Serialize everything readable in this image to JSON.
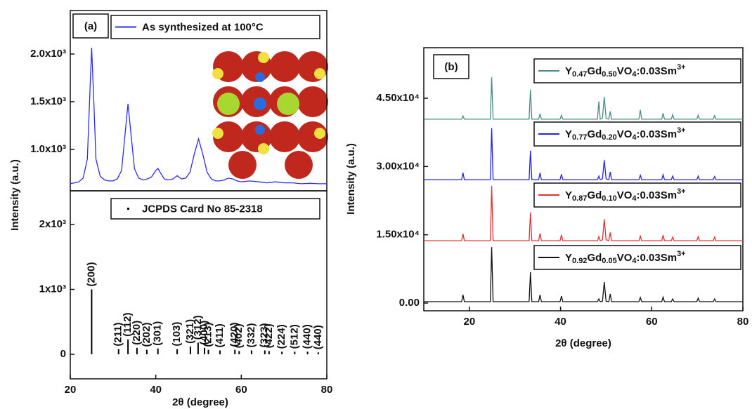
{
  "chart_data": [
    {
      "type": "line",
      "panel_label": "(a)",
      "ylabel": "Intensity (a.u.)",
      "x": [
        20,
        21,
        22,
        23,
        24,
        24.5,
        25,
        25.5,
        26,
        27,
        28,
        29,
        30,
        31,
        32,
        33,
        33.5,
        34,
        35,
        36,
        37,
        38,
        39,
        40,
        40.5,
        41,
        42,
        43,
        44,
        45,
        46,
        47,
        48,
        49,
        50,
        51,
        52,
        53,
        54,
        55,
        56,
        57,
        58,
        59,
        60,
        62,
        64,
        66,
        68,
        70,
        72,
        74,
        76,
        78,
        80
      ],
      "series": [
        {
          "name": "As synthesized at 100°C",
          "color": "#2b2bf0",
          "values": [
            640,
            650,
            660,
            700,
            900,
            1500,
            2066,
            1500,
            900,
            720,
            680,
            670,
            670,
            690,
            780,
            1250,
            1478,
            1250,
            800,
            700,
            680,
            690,
            710,
            780,
            800,
            760,
            690,
            680,
            690,
            724,
            690,
            700,
            760,
            950,
            1110,
            950,
            760,
            690,
            670,
            670,
            680,
            700,
            690,
            670,
            660,
            670,
            660,
            650,
            660,
            650,
            650,
            640,
            645,
            640,
            640
          ]
        }
      ],
      "xlim": [
        20,
        80
      ],
      "ylim": [
        566,
        2456
      ],
      "yticks": [
        {
          "value": 1000,
          "label": "1.0x10³"
        },
        {
          "value": 1500,
          "label": "1.5x10³"
        },
        {
          "value": 2000,
          "label": "2.0x10³"
        }
      ]
    },
    {
      "type": "stick",
      "xlabel": "2θ (degree)",
      "series": [
        {
          "name": "JCPDS Card No 85-2318",
          "color": "#000000",
          "x": [
            25.0,
            31.3,
            33.5,
            35.6,
            37.9,
            40.5,
            45.0,
            48.1,
            49.9,
            51.4,
            52.3,
            55.0,
            58.5,
            59.5,
            62.4,
            65.5,
            66.5,
            69.5,
            72.5,
            75.5,
            78.0
          ],
          "values": [
            1000,
            80,
            230,
            100,
            70,
            90,
            80,
            120,
            180,
            100,
            70,
            60,
            70,
            50,
            60,
            60,
            50,
            40,
            40,
            40,
            30
          ],
          "labels": [
            "(200)",
            "(211)",
            "(112)",
            "(220)",
            "(202)",
            "(301)",
            "(103)",
            "(321)",
            "(312)",
            "(400)",
            "(213)",
            "(411)",
            "(420)",
            "(402)",
            "(332)",
            "(323)",
            "(422)",
            "(224)",
            "(512)",
            "(440)",
            "(440)"
          ]
        }
      ],
      "xlim": [
        20,
        80
      ],
      "xticks": [
        20,
        40,
        60,
        80
      ],
      "ylim": [
        -378,
        2519
      ],
      "yticks": [
        0,
        {
          "value": 1000,
          "label": "1x10³"
        },
        {
          "value": 2000,
          "label": "2x10³"
        }
      ]
    },
    {
      "type": "line",
      "panel_label": "(b)",
      "xlabel": "2θ (degree)",
      "ylabel": "Intensity (a.u.)",
      "x": [
        10,
        18.3,
        18.6,
        18.9,
        22,
        24.6,
        24.9,
        25.2,
        28,
        33.1,
        33.4,
        33.7,
        35.2,
        35.5,
        35.8,
        39.9,
        40.2,
        40.5,
        44,
        48.1,
        48.4,
        48.7,
        49.2,
        49.6,
        50.0,
        50.6,
        50.9,
        51.2,
        54,
        57.2,
        57.5,
        57.8,
        62.2,
        62.5,
        62.8,
        64.3,
        64.6,
        64.9,
        69.9,
        70.2,
        70.5,
        73.5,
        73.8,
        74.1,
        80
      ],
      "series": [
        {
          "name": "Y0.47Gd0.50VO4:0.03Sm3+",
          "color": "#4a8c82",
          "values": [
            40400,
            40400,
            41100,
            40400,
            40400,
            40400,
            49600,
            40400,
            40400,
            40400,
            46900,
            40400,
            40400,
            41600,
            40400,
            40400,
            41300,
            40400,
            40400,
            40400,
            44300,
            40400,
            40600,
            45300,
            40600,
            40400,
            42100,
            40400,
            40400,
            40400,
            42400,
            40400,
            40400,
            41700,
            40400,
            40400,
            41400,
            40400,
            40400,
            41300,
            40400,
            40400,
            41200,
            40400,
            40400
          ]
        },
        {
          "name": "Y0.77Gd0.20VO4:0.03Sm3+",
          "color": "#2222ee",
          "values": [
            27100,
            27100,
            28600,
            27100,
            27100,
            27100,
            38400,
            27100,
            27100,
            27100,
            33500,
            27100,
            27100,
            28600,
            27100,
            27100,
            28300,
            27100,
            27100,
            27100,
            27900,
            27100,
            27300,
            31400,
            27300,
            27100,
            28800,
            27100,
            27100,
            27100,
            28100,
            27100,
            27100,
            28200,
            27100,
            27100,
            27900,
            27100,
            27100,
            27900,
            27100,
            27100,
            27800,
            27100,
            27100
          ]
        },
        {
          "name": "Y0.87Gd0.10VO4:0.03Sm3+",
          "color": "#e03030",
          "values": [
            13700,
            13700,
            15200,
            13700,
            13700,
            13700,
            25700,
            13700,
            13700,
            13700,
            19900,
            13700,
            13700,
            15300,
            13700,
            13700,
            15000,
            13700,
            13700,
            13700,
            14600,
            13700,
            13900,
            18400,
            13900,
            13700,
            15500,
            13700,
            13700,
            13700,
            14700,
            13700,
            13700,
            14900,
            13700,
            13700,
            14500,
            13700,
            13700,
            14600,
            13700,
            13700,
            14500,
            13700,
            13700
          ]
        },
        {
          "name": "Y0.92Gd0.05VO4:0.03Sm3+",
          "color": "#111111",
          "values": [
            300,
            300,
            1800,
            300,
            300,
            300,
            12300,
            300,
            300,
            300,
            6800,
            300,
            300,
            1800,
            300,
            300,
            1500,
            300,
            300,
            300,
            900,
            300,
            400,
            4600,
            400,
            300,
            2000,
            300,
            300,
            300,
            1200,
            300,
            300,
            1300,
            300,
            300,
            900,
            300,
            300,
            1100,
            300,
            300,
            900,
            300,
            300
          ]
        }
      ],
      "xlim": [
        10,
        80
      ],
      "xticks": [
        20,
        40,
        60,
        80
      ],
      "ylim": [
        -1700,
        56100
      ],
      "yticks": [
        {
          "value": 0,
          "label": "0.00"
        },
        {
          "value": 15000,
          "label": "1.50x10⁴"
        },
        {
          "value": 30000,
          "label": "3.00x10⁴"
        },
        {
          "value": 45000,
          "label": "4.50x10⁴"
        }
      ]
    }
  ]
}
